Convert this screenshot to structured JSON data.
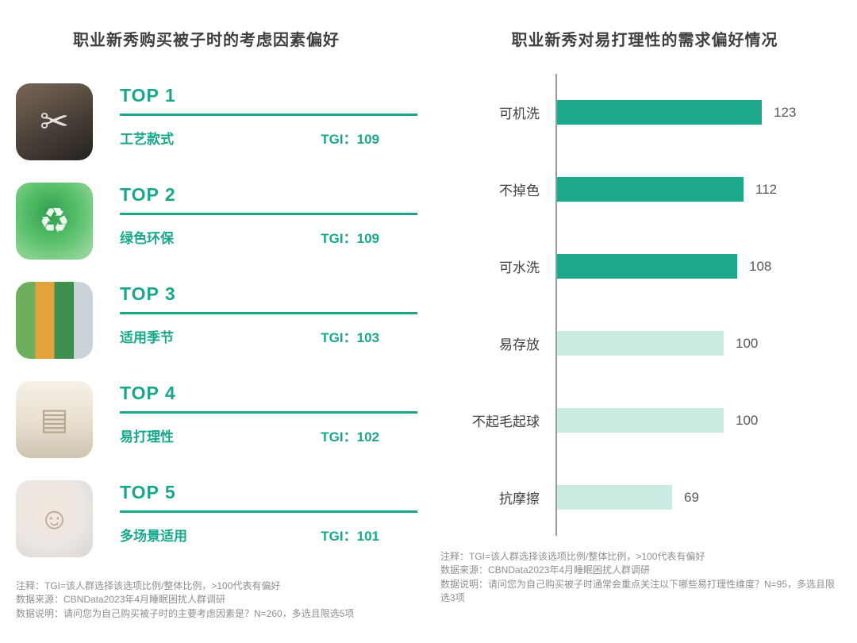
{
  "accent_color": "#17a88b",
  "left": {
    "title": "职业新秀购买被子时的考虑因素偏好",
    "items": [
      {
        "rank": "TOP 1",
        "label": "工艺款式",
        "tgi": "TGI：109",
        "photo": "sewing-hands-photo"
      },
      {
        "rank": "TOP 2",
        "label": "绿色环保",
        "tgi": "TGI：109",
        "photo": "green-recycle-globe-photo"
      },
      {
        "rank": "TOP 3",
        "label": "适用季节",
        "tgi": "TGI：103",
        "photo": "four-seasons-trees-photo"
      },
      {
        "rank": "TOP 4",
        "label": "易打理性",
        "tgi": "TGI：102",
        "photo": "folded-linens-shelf-photo"
      },
      {
        "rank": "TOP 5",
        "label": "多场景适用",
        "tgi": "TGI：101",
        "photo": "woman-in-duvet-photo"
      }
    ],
    "notes": [
      "注释：TGI=该人群选择该选项比例/整体比例，>100代表有偏好",
      "数据来源：CBNData2023年4月睡眠困扰人群调研",
      "数据说明：请问您为自己购买被子时的主要考虑因素是？N=260，多选且限选5项"
    ]
  },
  "right": {
    "title": "职业新秀对易打理性的需求偏好情况",
    "notes": [
      "注释：TGI=该人群选择该选项比例/整体比例，>100代表有偏好",
      "数据来源：CBNData2023年4月睡眠困扰人群调研",
      "数据说明：请问您为自己购买被子时通常会重点关注以下哪些易打理性维度？N=95，多选且限选3项"
    ]
  },
  "chart_data": {
    "type": "bar",
    "orientation": "horizontal",
    "title": "职业新秀对易打理性的需求偏好情况",
    "categories": [
      "可机洗",
      "不掉色",
      "可水洗",
      "易存放",
      "不起毛起球",
      "抗摩擦"
    ],
    "values": [
      123,
      112,
      108,
      100,
      100,
      69
    ],
    "shades": [
      "dark",
      "dark",
      "dark",
      "light",
      "light",
      "light"
    ],
    "colors": {
      "dark": "#1ba88d",
      "light": "#c9ebe1"
    },
    "xlim": [
      0,
      130
    ],
    "grid": false,
    "legend": "none",
    "value_labels": "end-of-bar"
  }
}
